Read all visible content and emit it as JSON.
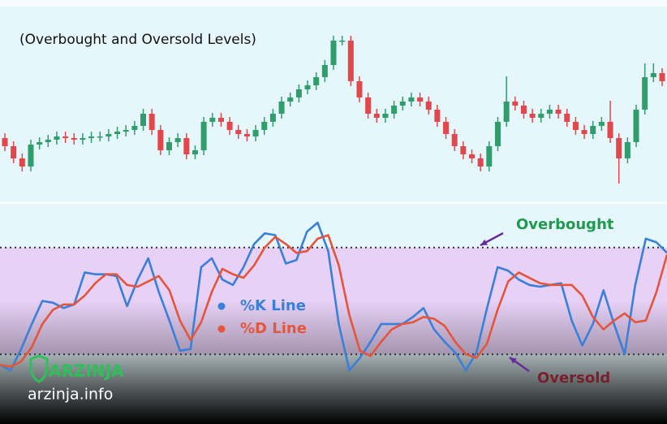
{
  "chart_data": [
    {
      "type": "candlestick",
      "title": "(Overbought and Oversold Levels)",
      "up_color": "#2f9d6c",
      "down_color": "#e2474b",
      "ylim": [
        0,
        110
      ],
      "open": [
        40,
        35,
        27.5,
        22.5,
        36,
        37.5,
        39,
        41,
        40,
        39,
        40,
        41,
        41,
        42.5,
        44,
        45,
        47.5,
        55,
        45,
        32.5,
        37.5,
        40,
        30,
        32.5,
        50,
        52.5,
        50,
        45,
        42.5,
        41,
        45,
        50,
        55,
        62.5,
        65,
        70,
        72.5,
        77.5,
        85,
        100,
        100,
        75,
        65,
        55,
        52.5,
        55,
        60,
        62.5,
        65,
        62.5,
        57.5,
        50,
        42.5,
        35,
        30,
        27.5,
        22.5,
        35,
        50,
        62.5,
        60,
        55,
        52.5,
        55,
        57.5,
        55,
        50,
        45,
        42.5,
        47.5,
        50,
        40,
        27.5,
        37.5,
        57.5,
        77.5,
        80
      ],
      "high": [
        43,
        38,
        30.5,
        39,
        40.5,
        42,
        44,
        44,
        43,
        43,
        44,
        44,
        45.5,
        47,
        48,
        50.5,
        58,
        58,
        48,
        40.5,
        43,
        43,
        35.5,
        53,
        55.5,
        55.5,
        53,
        48,
        45.5,
        48,
        53,
        58,
        65.5,
        68,
        73,
        75.5,
        80.5,
        88,
        103,
        103,
        103,
        78,
        68,
        58,
        58,
        63,
        65.5,
        68,
        68,
        65.5,
        60.5,
        53,
        45.5,
        38,
        33,
        30.5,
        38,
        53,
        78,
        65.5,
        63,
        58,
        58,
        60.5,
        60.5,
        58,
        53,
        48,
        50.5,
        53,
        63,
        43,
        40.5,
        60.5,
        86,
        86,
        83
      ],
      "low": [
        32,
        24.5,
        19.5,
        19.5,
        33,
        34.5,
        36,
        37,
        36,
        36,
        37,
        38,
        38,
        39.5,
        41,
        42,
        44.5,
        42,
        29.5,
        29.5,
        34.5,
        27,
        27,
        29.5,
        47,
        47,
        42,
        39.5,
        38,
        38,
        42,
        47,
        52,
        59.5,
        62,
        67,
        69.5,
        74.5,
        82,
        97,
        72,
        62,
        52,
        49.5,
        49.5,
        52,
        57,
        59.5,
        59.5,
        54.5,
        47,
        39.5,
        32,
        27,
        24.5,
        19.5,
        19.5,
        32,
        47,
        57,
        52,
        49.5,
        49.5,
        52,
        52,
        47,
        42,
        39.5,
        39.5,
        44.5,
        37,
        12,
        24.5,
        34.5,
        54.5,
        74.5,
        72
      ],
      "close": [
        35,
        27.5,
        22.5,
        36,
        37.5,
        39,
        41,
        40,
        39,
        40,
        41,
        41,
        42.5,
        44,
        45,
        47.5,
        55,
        45,
        32.5,
        37.5,
        40,
        30,
        32.5,
        50,
        52.5,
        50,
        45,
        42.5,
        41,
        45,
        50,
        55,
        62.5,
        65,
        70,
        72.5,
        77.5,
        85,
        100,
        100,
        75,
        65,
        55,
        52.5,
        55,
        60,
        62.5,
        65,
        62.5,
        57.5,
        50,
        42.5,
        35,
        30,
        27.5,
        22.5,
        35,
        50,
        62.5,
        60,
        55,
        52.5,
        55,
        57.5,
        55,
        50,
        45,
        42.5,
        47.5,
        50,
        40,
        27.5,
        37.5,
        57.5,
        77.5,
        80,
        75
      ]
    },
    {
      "type": "line",
      "ylim": [
        0,
        100
      ],
      "levels": [
        {
          "value": 80,
          "label": "Overbought",
          "color": "#1f9a4e"
        },
        {
          "value": 20,
          "label": "Oversold",
          "color": "#7a1e2c"
        }
      ],
      "series": [
        {
          "name": "%K Line",
          "color": "#3a7fd9",
          "values": [
            14,
            11,
            23,
            37,
            50,
            49,
            46,
            48,
            66,
            65,
            65,
            64,
            47,
            62,
            74,
            55,
            39,
            22,
            23,
            69,
            74,
            62,
            59,
            69,
            82,
            88,
            87,
            71,
            73,
            89,
            94,
            78,
            37,
            11,
            18,
            27,
            37,
            37,
            37,
            41,
            46,
            34,
            27,
            21,
            11,
            21,
            46,
            69,
            67,
            62,
            59,
            58,
            59,
            60,
            39,
            25,
            37,
            56,
            37,
            20,
            59,
            85,
            83,
            77
          ]
        },
        {
          "name": "%D Line",
          "color": "#e4553c",
          "values": [
            14,
            13,
            16,
            24,
            37,
            45,
            48,
            48,
            53,
            60,
            65,
            65,
            59,
            58,
            61,
            64,
            56,
            39,
            28,
            38,
            55,
            68,
            65,
            63,
            70,
            80,
            86,
            82,
            77,
            78,
            85,
            87,
            70,
            42,
            22,
            19,
            27,
            34,
            37,
            38,
            41,
            40,
            36,
            27,
            20,
            18,
            26,
            45,
            61,
            66,
            63,
            60,
            59,
            59,
            59,
            53,
            41,
            34,
            39,
            43,
            38,
            39,
            55,
            76
          ]
        }
      ]
    }
  ],
  "watermark": {
    "brand": "ARZINJA",
    "url": "arzinja.info"
  }
}
